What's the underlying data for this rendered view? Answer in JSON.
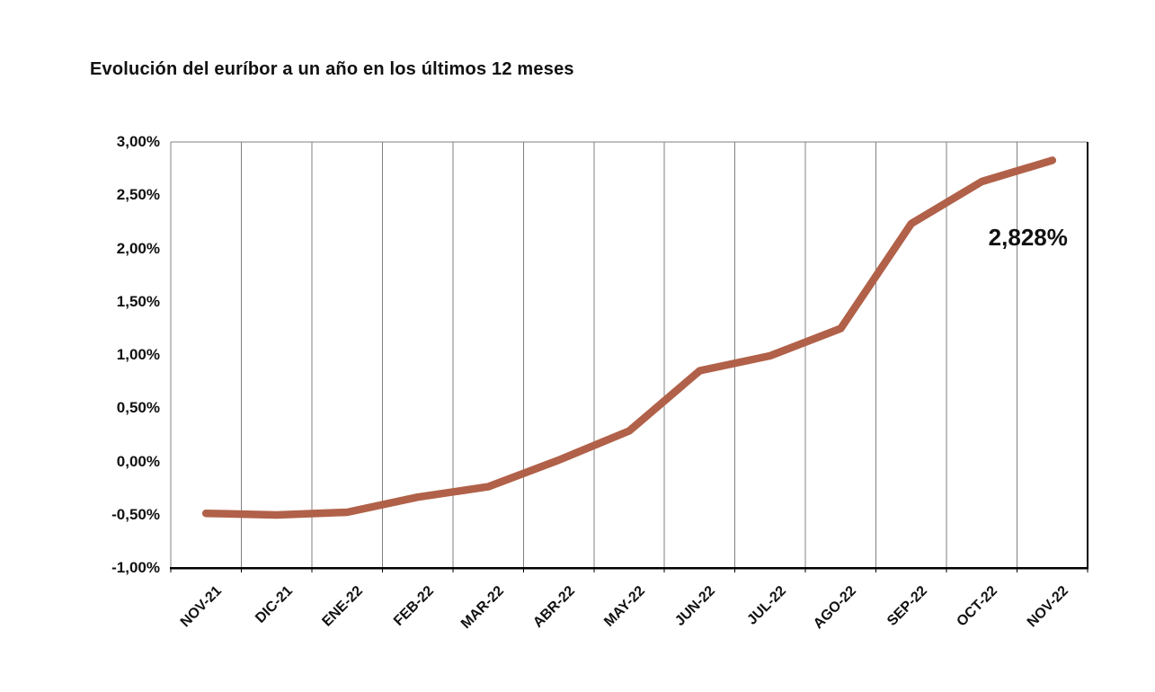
{
  "chart_data": {
    "type": "line",
    "title": "Evolución del euríbor a un año en los últimos 12 meses",
    "categories": [
      "NOV-21",
      "DIC-21",
      "ENE-22",
      "FEB-22",
      "MAR-22",
      "ABR-22",
      "MAY-22",
      "JUN-22",
      "JUL-22",
      "AGO-22",
      "SEP-22",
      "OCT-22",
      "NOV-22"
    ],
    "series": [
      {
        "name": "Euríbor a un año",
        "values": [
          -0.487,
          -0.502,
          -0.477,
          -0.335,
          -0.237,
          0.013,
          0.287,
          0.852,
          0.992,
          1.249,
          2.233,
          2.629,
          2.828
        ]
      }
    ],
    "ylim": [
      -1.0,
      3.0
    ],
    "ytick_step": 0.5,
    "ytick_labels": [
      "3,00%",
      "2,50%",
      "2,00%",
      "1,50%",
      "1,00%",
      "0,50%",
      "0,00%",
      "-0,50%",
      "-1,00%"
    ],
    "xlabel": "",
    "ylabel": "",
    "grid": "vertical-only",
    "legend": "none",
    "annotation": {
      "text": "2,828%",
      "category": "NOV-22",
      "value": 2.828
    },
    "colors": {
      "line": "#b16149",
      "gridline": "#808080",
      "plot_border": "#808080",
      "axis": "#000000",
      "text": "#111111",
      "background": "#ffffff"
    }
  }
}
